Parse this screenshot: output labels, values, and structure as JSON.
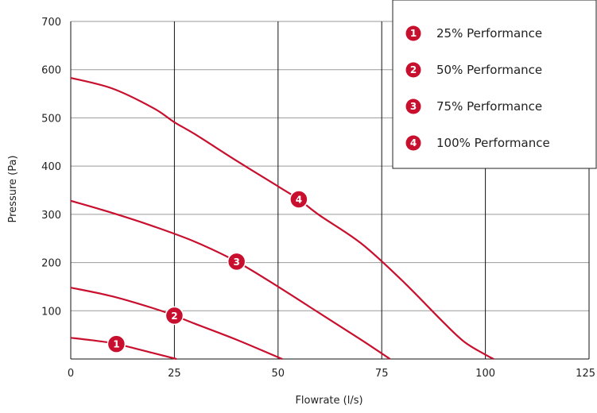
{
  "chart_data": {
    "type": "line",
    "title": "",
    "xlabel": "Flowrate (l/s)",
    "ylabel": "Pressure (Pa)",
    "xlim": [
      0,
      125
    ],
    "ylim": [
      0,
      700
    ],
    "x_ticks": [
      "0",
      "25",
      "50",
      "75",
      "100",
      "125"
    ],
    "y_ticks": [
      "100",
      "200",
      "300",
      "400",
      "500",
      "600",
      "700"
    ],
    "grid": "vertical and horizontal lines at ticks",
    "legend_position": "top-right",
    "line_color": "#c8102e",
    "series": [
      {
        "name": "25% Performance",
        "badge": "1",
        "label_at": 11,
        "x": [
          0,
          5,
          10,
          15,
          20,
          25.5
        ],
        "y": [
          44,
          39,
          33,
          23,
          12,
          0
        ]
      },
      {
        "name": "50% Performance",
        "badge": "2",
        "label_at": 25,
        "x": [
          0,
          10,
          20,
          25,
          30,
          40,
          51
        ],
        "y": [
          148,
          130,
          105,
          90,
          73,
          40,
          0
        ]
      },
      {
        "name": "75% Performance",
        "badge": "3",
        "label_at": 40,
        "x": [
          0,
          10,
          20,
          30,
          40,
          50,
          60,
          70,
          77
        ],
        "y": [
          328,
          303,
          275,
          243,
          202,
          150,
          95,
          40,
          0
        ]
      },
      {
        "name": "100% Performance",
        "badge": "4",
        "label_at": 55,
        "x": [
          0,
          10,
          20,
          25,
          30,
          40,
          50,
          55,
          60,
          70,
          80,
          90,
          95,
          100,
          102
        ],
        "y": [
          583,
          561,
          520,
          491,
          466,
          411,
          358,
          331,
          298,
          240,
          162,
          75,
          35,
          9,
          0
        ]
      }
    ]
  }
}
